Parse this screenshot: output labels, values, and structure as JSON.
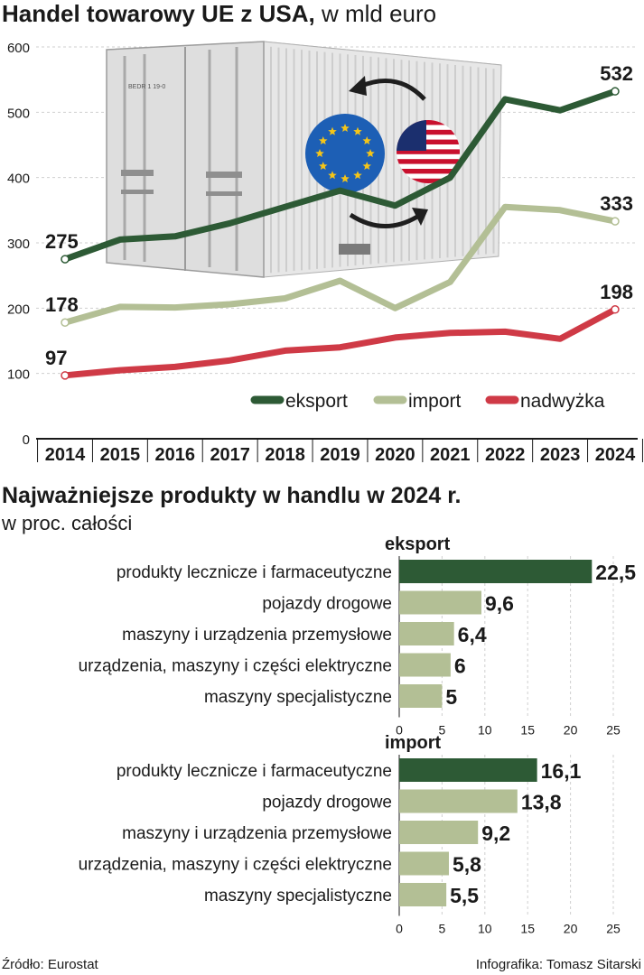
{
  "colors": {
    "export": "#2d5a35",
    "import": "#b3bf95",
    "surplus": "#cf3a46",
    "axis": "#1a1a1a",
    "grid": "#cfcfcf",
    "text": "#1a1a1a"
  },
  "line_chart": {
    "title_bold": "Handel towarowy UE z USA,",
    "title_regular": " w mld euro",
    "illustration": {
      "icon": "shipping-container-icon",
      "markings": "BEDR 1 19-0"
    },
    "chart_data": {
      "type": "line",
      "x": [
        "2014",
        "2015",
        "2016",
        "2017",
        "2018",
        "2019",
        "2020",
        "2021",
        "2022",
        "2023",
        "2024"
      ],
      "ylim": [
        0,
        600
      ],
      "yticks": [
        "0",
        "100",
        "200",
        "300",
        "400",
        "500",
        "600"
      ],
      "grid": true,
      "legend_position": "bottom-right",
      "series": [
        {
          "key": "export",
          "name": "eksport",
          "values": [
            275,
            305,
            310,
            330,
            355,
            380,
            357,
            400,
            520,
            503,
            532
          ],
          "start_label": "275",
          "end_label": "532"
        },
        {
          "key": "import",
          "name": "import",
          "values": [
            178,
            202,
            201,
            206,
            215,
            242,
            200,
            240,
            355,
            350,
            333
          ],
          "start_label": "178",
          "end_label": "333"
        },
        {
          "key": "surplus",
          "name": "nadwyżka",
          "values": [
            97,
            105,
            110,
            120,
            135,
            140,
            155,
            162,
            164,
            153,
            198
          ],
          "start_label": "97",
          "end_label": "198"
        }
      ]
    }
  },
  "bar_section": {
    "title": "Najważniejsze produkty w handlu w 2024 r.",
    "subtitle": "w proc. całości",
    "charts": [
      {
        "type": "bar",
        "orientation": "horizontal",
        "title": "eksport",
        "xlim": [
          0,
          25
        ],
        "xticks": [
          "0",
          "5",
          "10",
          "15",
          "20",
          "25"
        ],
        "categories": [
          "produkty lecznicze i farmaceutyczne",
          "pojazdy drogowe",
          "maszyny i urządzenia przemysłowe",
          "urządzenia, maszyny i części elektryczne",
          "maszyny specjalistyczne"
        ],
        "values": [
          22.5,
          9.6,
          6.4,
          6,
          5
        ],
        "labels": [
          "22,5",
          "9,6",
          "6,4",
          "6",
          "5"
        ]
      },
      {
        "type": "bar",
        "orientation": "horizontal",
        "title": "import",
        "xlim": [
          0,
          25
        ],
        "xticks": [
          "0",
          "5",
          "10",
          "15",
          "20",
          "25"
        ],
        "categories": [
          "produkty lecznicze i farmaceutyczne",
          "pojazdy drogowe",
          "maszyny i urządzenia przemysłowe",
          "urządzenia, maszyny i części elektryczne",
          "maszyny specjalistyczne"
        ],
        "values": [
          16.1,
          13.8,
          9.2,
          5.8,
          5.5
        ],
        "labels": [
          "16,1",
          "13,8",
          "9,2",
          "5,8",
          "5,5"
        ]
      }
    ]
  },
  "footer": {
    "source": "Źródło: Eurostat",
    "credit": "Infografika: Tomasz Sitarski"
  }
}
